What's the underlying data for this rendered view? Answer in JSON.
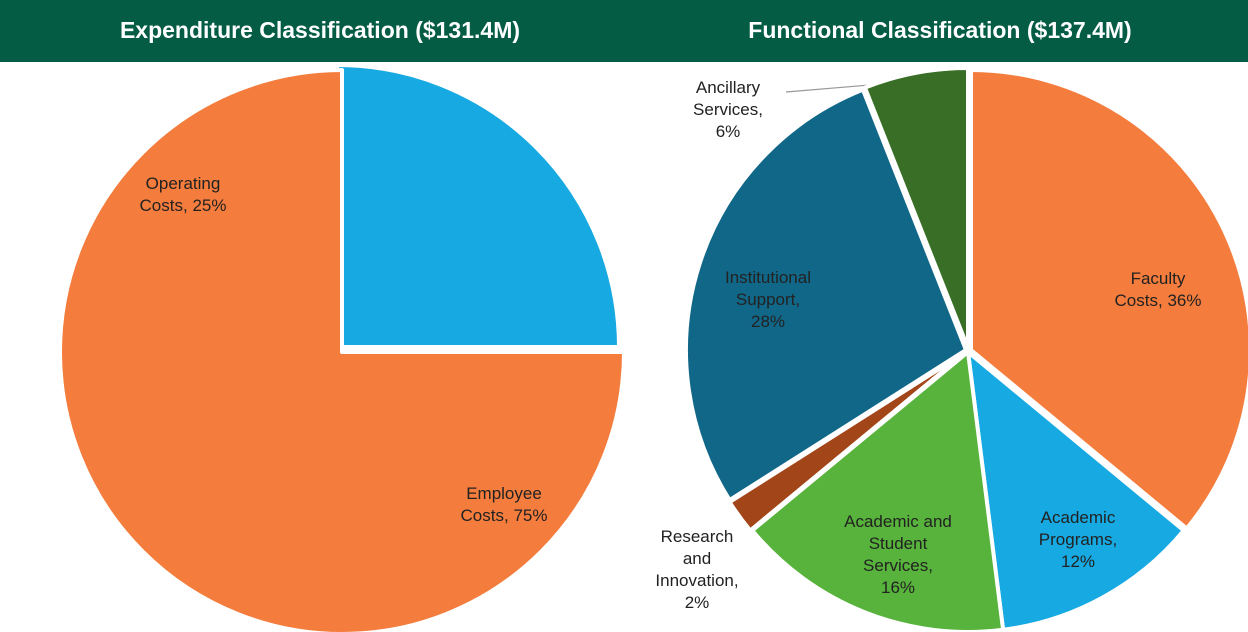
{
  "chart_data": [
    {
      "type": "pie",
      "title": "Expenditure Classification ($131.4M)",
      "categories": [
        "Operating Costs,",
        "Employee Costs,"
      ],
      "values": [
        25,
        75
      ],
      "value_labels": [
        "25%",
        "75%"
      ],
      "colors": [
        "#17a9e1",
        "#f47c3c"
      ]
    },
    {
      "type": "pie",
      "title": "Functional Classification ($137.4M)",
      "categories": [
        "Faculty Costs,",
        "Academic Programs,",
        "Academic and Student Services,",
        "Research and Innovation,",
        "Institutional Support,",
        "Ancillary Services,"
      ],
      "values": [
        36,
        12,
        16,
        2,
        28,
        6
      ],
      "value_labels": [
        "36%",
        "12%",
        "16%",
        "2%",
        "28%",
        "6%"
      ],
      "colors": [
        "#f47c3c",
        "#17a9e1",
        "#57b33b",
        "#a24518",
        "#116788",
        "#386e25"
      ]
    }
  ]
}
